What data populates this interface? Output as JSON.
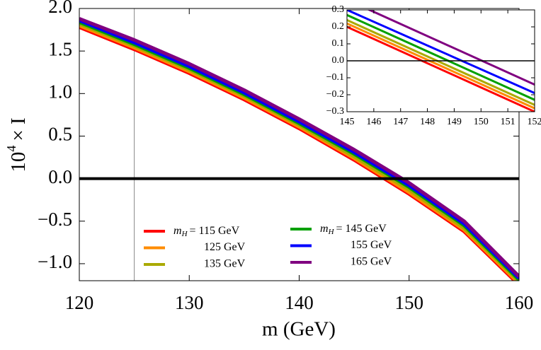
{
  "chart_data": [
    {
      "type": "line",
      "xlabel": "m (GeV)",
      "ylabel": {
        "base": "10",
        "exp": "4",
        "rest": "× I"
      },
      "x": [
        120,
        125,
        130,
        135,
        140,
        145,
        150,
        155,
        160
      ],
      "series": [
        {
          "name": "115 GeV",
          "color": "#ff0000",
          "values": [
            1.78,
            1.52,
            1.24,
            0.93,
            0.59,
            0.22,
            -0.18,
            -0.62,
            -1.25
          ]
        },
        {
          "name": "125 GeV",
          "color": "#ff8c00",
          "values": [
            1.8,
            1.54,
            1.26,
            0.95,
            0.61,
            0.24,
            -0.16,
            -0.6,
            -1.23
          ]
        },
        {
          "name": "135 GeV",
          "color": "#aaaa00",
          "values": [
            1.82,
            1.56,
            1.28,
            0.97,
            0.63,
            0.26,
            -0.13,
            -0.58,
            -1.21
          ]
        },
        {
          "name": "145 GeV",
          "color": "#00a000",
          "values": [
            1.84,
            1.58,
            1.3,
            0.99,
            0.65,
            0.29,
            -0.1,
            -0.55,
            -1.19
          ]
        },
        {
          "name": "155 GeV",
          "color": "#0000ff",
          "values": [
            1.86,
            1.6,
            1.32,
            1.01,
            0.67,
            0.31,
            -0.08,
            -0.53,
            -1.17
          ]
        },
        {
          "name": "165 GeV",
          "color": "#800080",
          "values": [
            1.88,
            1.63,
            1.35,
            1.04,
            0.7,
            0.34,
            -0.05,
            -0.5,
            -1.15
          ]
        }
      ],
      "legend_prefix": {
        "symbol": "m",
        "subscript": "H",
        "sign": "="
      },
      "xlim": [
        120,
        160
      ],
      "ylim": [
        -1.2,
        2.0
      ],
      "xticks": [
        120,
        130,
        140,
        150,
        160
      ],
      "yticks": [
        {
          "value": 2.0,
          "label": "2.0"
        },
        {
          "value": 1.5,
          "label": "1.5"
        },
        {
          "value": 1.0,
          "label": "1.0"
        },
        {
          "value": 0.5,
          "label": "0.5"
        },
        {
          "value": 0.0,
          "label": "0.0"
        },
        {
          "value": -0.5,
          "label": "−0.5"
        },
        {
          "value": -1.0,
          "label": "−1.0"
        }
      ],
      "vline": 125,
      "hline": 0
    },
    {
      "type": "line",
      "x": [
        145,
        152
      ],
      "series": [
        {
          "color": "#ff0000",
          "values": [
            0.2,
            -0.3
          ]
        },
        {
          "color": "#ff8c00",
          "values": [
            0.22,
            -0.28
          ]
        },
        {
          "color": "#aaaa00",
          "values": [
            0.24,
            -0.26
          ]
        },
        {
          "color": "#00a000",
          "values": [
            0.27,
            -0.23
          ]
        },
        {
          "color": "#0000ff",
          "values": [
            0.3,
            -0.19
          ]
        },
        {
          "color": "#800080",
          "values": [
            0.36,
            -0.14
          ]
        }
      ],
      "xlim": [
        145,
        152
      ],
      "ylim": [
        -0.3,
        0.3
      ],
      "xticks": [
        145,
        146,
        147,
        148,
        149,
        150,
        151,
        152
      ],
      "yticks": [
        0.3,
        0.2,
        0.1,
        {
          "value": 0.0,
          "label": "0.0"
        },
        {
          "value": -0.1,
          "label": "−0.1"
        },
        {
          "value": -0.2,
          "label": "−0.2"
        },
        {
          "value": -0.3,
          "label": "−0.3"
        }
      ],
      "hline": 0
    }
  ]
}
